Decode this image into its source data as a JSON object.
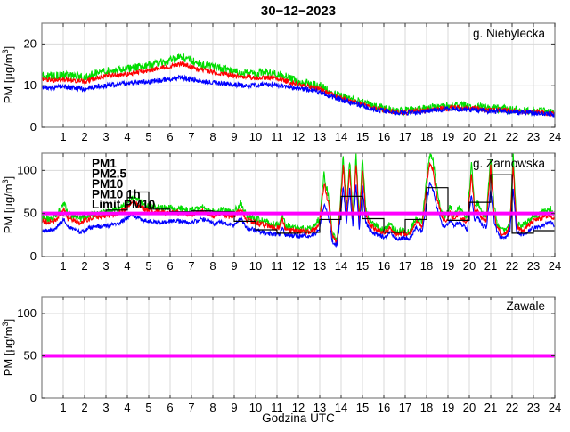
{
  "chart_data": {
    "type": "line",
    "title": "30−12−2023",
    "xlabel": "Godzina UTC",
    "xlim": [
      0,
      24
    ],
    "xticks": [
      1,
      2,
      3,
      4,
      5,
      6,
      7,
      8,
      9,
      10,
      11,
      12,
      13,
      14,
      15,
      16,
      17,
      18,
      19,
      20,
      21,
      22,
      23,
      24
    ],
    "grid": true,
    "panels": [
      {
        "station_label": "g. Niebylecka",
        "ylabel_pre": "PM [µg/m",
        "ylabel_sup": "3",
        "ylabel_post": "]",
        "ylim": [
          0,
          25
        ],
        "yticks": [
          0,
          10,
          20
        ],
        "x": [
          0,
          0.5,
          1,
          1.5,
          2,
          2.5,
          3,
          3.5,
          4,
          4.5,
          5,
          5.5,
          6,
          6.5,
          7,
          7.5,
          8,
          8.5,
          9,
          9.5,
          10,
          10.5,
          11,
          11.5,
          12,
          12.5,
          13,
          13.5,
          14,
          14.5,
          15,
          15.5,
          16,
          16.5,
          17,
          17.5,
          18,
          18.5,
          19,
          19.5,
          20,
          20.5,
          21,
          21.5,
          22,
          22.5,
          23,
          23.5,
          24
        ],
        "series": [
          {
            "name": "PM10",
            "color": "#00dd00",
            "noise": 1.0,
            "y": [
              12.5,
              12.3,
              12.5,
              12.2,
              12,
              13,
              13.5,
              13.8,
              14,
              14.5,
              15,
              15.5,
              16,
              17,
              16,
              15,
              14.5,
              14,
              13.5,
              13,
              13,
              13,
              13,
              12,
              11,
              10.5,
              10,
              8.5,
              7.5,
              6.5,
              6,
              5,
              4.5,
              4,
              4,
              4.2,
              4.5,
              5,
              5,
              5.2,
              5,
              4.8,
              4.5,
              4.5,
              4.2,
              4,
              4,
              3.8,
              3.5
            ]
          },
          {
            "name": "PM2.5",
            "color": "#ff0000",
            "noise": 0.6,
            "y": [
              11.5,
              11.3,
              11.5,
              11.2,
              11,
              11.8,
              12.3,
              12.6,
              12.8,
              13.2,
              13.7,
              14.2,
              14.7,
              15.3,
              14.5,
              13.8,
              13.3,
              12.8,
              12.3,
              12,
              12,
              12,
              11.8,
              11,
              10.2,
              9.7,
              9.2,
              8,
              7,
              6.2,
              5.5,
              4.6,
              4.2,
              3.7,
              3.7,
              3.9,
              4.1,
              4.5,
              4.6,
              4.7,
              4.6,
              4.4,
              4.2,
              4.2,
              3.9,
              3.7,
              3.7,
              3.5,
              3.2
            ]
          },
          {
            "name": "PM1",
            "color": "#0000ff",
            "noise": 0.6,
            "y": [
              9.5,
              9.6,
              9.8,
              9.5,
              9.2,
              9.8,
              10,
              10.3,
              10.5,
              10.8,
              11,
              11.3,
              11.5,
              12,
              11.5,
              11,
              10.8,
              10.5,
              10.3,
              10,
              10.2,
              10.3,
              10.2,
              9.8,
              9.3,
              9,
              8.5,
              7.5,
              6.6,
              5.9,
              5.2,
              4.4,
              4,
              3.5,
              3.5,
              3.6,
              3.8,
              4.2,
              4.3,
              4.4,
              4.3,
              4.1,
              3.9,
              3.9,
              3.6,
              3.5,
              3.5,
              3.3,
              3
            ]
          }
        ]
      },
      {
        "station_label": "g. Zarnowska",
        "ylabel_pre": "PM [µg/m",
        "ylabel_sup": "3",
        "ylabel_post": "]",
        "ylim": [
          0,
          120
        ],
        "yticks": [
          0,
          50,
          100
        ],
        "legend": [
          {
            "label": "PM1",
            "color": "#0000ff"
          },
          {
            "label": "PM2.5",
            "color": "#ff0000"
          },
          {
            "label": "PM10",
            "color": "#00dd00"
          },
          {
            "label": "PM10 1h",
            "color": "#000000"
          },
          {
            "label": "Limit PM10",
            "color": "#ff00ff"
          }
        ],
        "x": [
          0,
          0.3,
          0.6,
          0.9,
          1.05,
          1.2,
          1.5,
          1.8,
          2.1,
          2.4,
          2.7,
          3,
          3.3,
          3.6,
          3.9,
          4.2,
          4.5,
          4.8,
          5.1,
          5.4,
          5.7,
          6,
          6.3,
          6.6,
          6.9,
          7.2,
          7.5,
          7.8,
          8.1,
          8.4,
          8.7,
          9,
          9.3,
          9.6,
          9.9,
          10.2,
          10.5,
          10.8,
          11.1,
          11.25,
          11.4,
          11.7,
          12,
          12.3,
          12.6,
          12.8,
          13,
          13.2,
          13.4,
          13.6,
          13.8,
          13.95,
          14.1,
          14.25,
          14.4,
          14.55,
          14.7,
          14.85,
          15,
          15.15,
          15.3,
          15.5,
          15.7,
          16,
          16.3,
          16.6,
          16.9,
          17.2,
          17.5,
          17.8,
          18,
          18.15,
          18.3,
          18.5,
          18.7,
          18.9,
          19.1,
          19.3,
          19.5,
          19.7,
          19.9,
          20.1,
          20.25,
          20.4,
          20.6,
          20.8,
          21,
          21.15,
          21.3,
          21.5,
          21.7,
          21.9,
          22.05,
          22.2,
          22.4,
          22.6,
          22.8,
          23,
          23.2,
          23.5,
          23.8,
          24
        ],
        "series": [
          {
            "name": "PM10",
            "color": "#00dd00",
            "noise": 4,
            "y": [
              46,
              44,
              45,
              56,
              62,
              50,
              46,
              44,
              47,
              49,
              50,
              51,
              53,
              56,
              60,
              70,
              66,
              60,
              58,
              57,
              56,
              57,
              56,
              55,
              54,
              55,
              58,
              54,
              52,
              55,
              52,
              52,
              62,
              46,
              44,
              42,
              40,
              38,
              37,
              48,
              36,
              34,
              33,
              32,
              32,
              36,
              45,
              95,
              70,
              25,
              18,
              60,
              118,
              55,
              112,
              48,
              118,
              45,
              115,
              58,
              44,
              38,
              34,
              30,
              38,
              28,
              30,
              28,
              45,
              40,
              90,
              118,
              112,
              75,
              52,
              46,
              58,
              48,
              56,
              50,
              44,
              108,
              58,
              62,
              50,
              48,
              115,
              60,
              38,
              30,
              32,
              40,
              118,
              42,
              34,
              38,
              42,
              46,
              48,
              52,
              55,
              50
            ]
          },
          {
            "name": "PM2.5",
            "color": "#ff0000",
            "noise": 3.2,
            "y": [
              42,
              40,
              41,
              50,
              55,
              45,
              42,
              40,
              43,
              45,
              46,
              47,
              49,
              51,
              55,
              64,
              60,
              55,
              53,
              52,
              51,
              52,
              51,
              50,
              49,
              50,
              53,
              49,
              47,
              50,
              47,
              47,
              56,
              42,
              40,
              38,
              36,
              34,
              33,
              43,
              32,
              30,
              30,
              29,
              29,
              32,
              40,
              85,
              62,
              22,
              16,
              52,
              106,
              48,
              100,
              42,
              106,
              40,
              103,
              50,
              39,
              34,
              30,
              27,
              33,
              25,
              27,
              25,
              40,
              35,
              80,
              108,
              100,
              67,
              46,
              41,
              51,
              42,
              49,
              44,
              39,
              96,
              51,
              55,
              44,
              42,
              104,
              53,
              33,
              26,
              28,
              35,
              106,
              37,
              30,
              33,
              37,
              41,
              42,
              46,
              48,
              44
            ]
          },
          {
            "name": "PM1",
            "color": "#0000ff",
            "noise": 2.5,
            "y": [
              31,
              30,
              31,
              39,
              43,
              35,
              31,
              28,
              32,
              34,
              35,
              35,
              37,
              39,
              43,
              48,
              45,
              42,
              41,
              40,
              40,
              41,
              41,
              41,
              40,
              41,
              44,
              41,
              38,
              40,
              37,
              36,
              44,
              33,
              31,
              29,
              27,
              26,
              25,
              34,
              25,
              24,
              24,
              24,
              24,
              27,
              33,
              60,
              48,
              17,
              13,
              42,
              82,
              38,
              78,
              34,
              82,
              32,
              80,
              41,
              32,
              28,
              25,
              22,
              28,
              20,
              22,
              20,
              33,
              29,
              62,
              85,
              78,
              55,
              38,
              34,
              42,
              35,
              40,
              36,
              32,
              72,
              42,
              45,
              36,
              34,
              78,
              43,
              28,
              21,
              23,
              29,
              80,
              30,
              25,
              27,
              30,
              33,
              34,
              37,
              40,
              36
            ]
          },
          {
            "name": "PM10 1h",
            "color": "#000000",
            "type": "step",
            "values": [
              50,
              47,
              49,
              54,
              75,
              55,
              52,
              53,
              52,
              41,
              31,
              27,
              28,
              43,
              70,
              44,
              28,
              43,
              80,
              42,
              63,
              95,
              27,
              30
            ]
          },
          {
            "name": "Limit PM10",
            "color": "#ff00ff",
            "type": "hline",
            "value": 50
          }
        ]
      },
      {
        "station_label": "Zawale",
        "ylabel_pre": "PM [µg/m",
        "ylabel_sup": "3",
        "ylabel_post": "]",
        "ylim": [
          0,
          120
        ],
        "yticks": [
          0,
          50,
          100
        ],
        "series": [
          {
            "name": "Limit PM10",
            "color": "#ff00ff",
            "type": "hline",
            "value": 50
          }
        ]
      }
    ]
  }
}
